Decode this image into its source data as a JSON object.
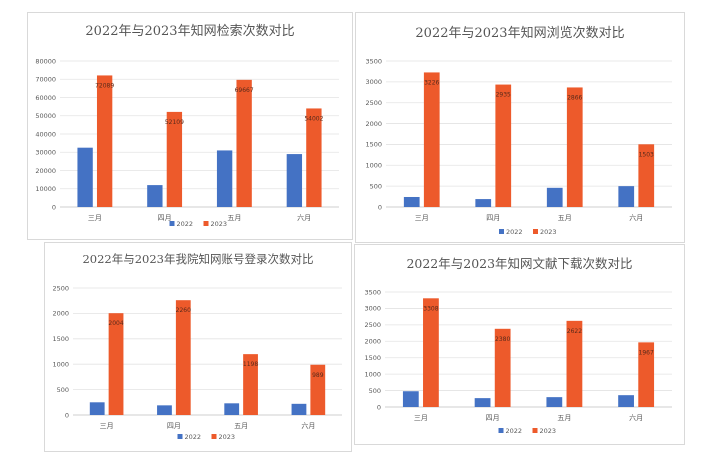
{
  "colors": {
    "s2022": "#4472c4",
    "s2023": "#ed5a2b",
    "grid": "#e3e3e3",
    "axis": "#bfbfbf",
    "text": "#595959"
  },
  "chart_data": [
    {
      "type": "bar",
      "title": "2022年与2023年知网检索次数对比",
      "categories": [
        "三月",
        "四月",
        "五月",
        "六月"
      ],
      "series": [
        {
          "name": "2022",
          "values": [
            32500,
            12000,
            31000,
            29000
          ]
        },
        {
          "name": "2023",
          "values": [
            72089,
            52109,
            69667,
            54002
          ]
        }
      ],
      "ylim": [
        0,
        80000
      ],
      "yticks": [
        0,
        10000,
        20000,
        30000,
        40000,
        50000,
        60000,
        70000,
        80000
      ],
      "data_labels_2023": [
        "72089",
        "52109",
        "69667",
        "54002"
      ],
      "legend": "bottom"
    },
    {
      "type": "bar",
      "title": "2022年与2023年知网浏览次数对比",
      "categories": [
        "三月",
        "四月",
        "五月",
        "六月"
      ],
      "series": [
        {
          "name": "2022",
          "values": [
            240,
            190,
            460,
            500
          ]
        },
        {
          "name": "2023",
          "values": [
            3226,
            2935,
            2866,
            1503
          ]
        }
      ],
      "ylim": [
        0,
        3500
      ],
      "yticks": [
        0,
        500,
        1000,
        1500,
        2000,
        2500,
        3000,
        3500
      ],
      "data_labels_2023": [
        "3226",
        "2935",
        "2866",
        "1503"
      ],
      "legend": "bottom"
    },
    {
      "type": "bar",
      "title": "2022年与2023年我院知网账号登录次数对比",
      "categories": [
        "三月",
        "四月",
        "五月",
        "六月"
      ],
      "series": [
        {
          "name": "2022",
          "values": [
            250,
            190,
            230,
            220
          ]
        },
        {
          "name": "2023",
          "values": [
            2004,
            2260,
            1198,
            989
          ]
        }
      ],
      "ylim": [
        0,
        2500
      ],
      "yticks": [
        0,
        500,
        1000,
        1500,
        2000,
        2500
      ],
      "data_labels_2023": [
        "2004",
        "2260",
        "1198",
        "989"
      ],
      "legend": "bottom"
    },
    {
      "type": "bar",
      "title": "2022年与2023年知网文献下载次数对比",
      "categories": [
        "三月",
        "四月",
        "五月",
        "六月"
      ],
      "series": [
        {
          "name": "2022",
          "values": [
            480,
            270,
            300,
            360
          ]
        },
        {
          "name": "2023",
          "values": [
            3308,
            2380,
            2622,
            1967
          ]
        }
      ],
      "ylim": [
        0,
        3500
      ],
      "yticks": [
        0,
        500,
        1000,
        1500,
        2000,
        2500,
        3000,
        3500
      ],
      "data_labels_2023": [
        "3308",
        "2380",
        "2622",
        "1967"
      ],
      "legend": "bottom"
    }
  ]
}
